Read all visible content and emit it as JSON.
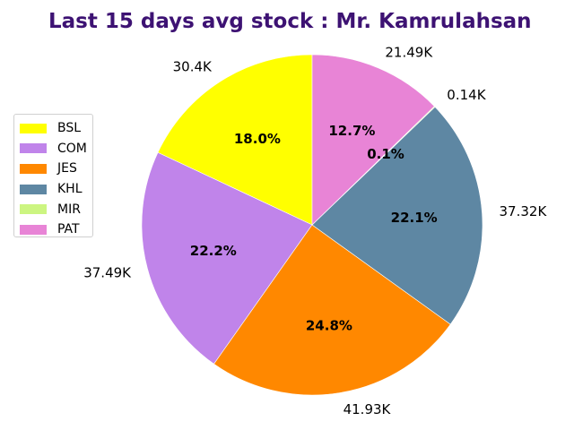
{
  "chart_data": {
    "type": "pie",
    "title": "Last 15 days avg stock : Mr. Kamrulahsan",
    "categories": [
      "BSL",
      "COM",
      "JES",
      "KHL",
      "MIR",
      "PAT"
    ],
    "values": [
      30.4,
      37.49,
      41.93,
      37.32,
      0.14,
      21.49
    ],
    "value_labels": [
      "30.4K",
      "37.49K",
      "41.93K",
      "37.32K",
      "0.14K",
      "21.49K"
    ],
    "percent_labels": [
      "18.0%",
      "22.2%",
      "24.8%",
      "22.1%",
      "0.1%",
      "12.7%"
    ],
    "colors": [
      "#ffff00",
      "#c084ea",
      "#ff8800",
      "#5e87a3",
      "#ccf581",
      "#e884d6"
    ],
    "start_angle_deg": 90,
    "direction": "counterclockwise",
    "legend_position": "left"
  }
}
